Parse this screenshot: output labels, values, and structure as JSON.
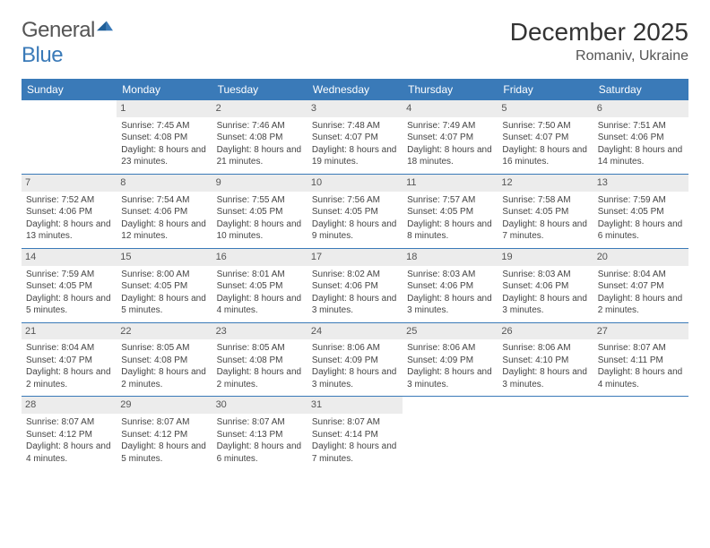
{
  "logo": {
    "textGray": "General",
    "textBlue": "Blue"
  },
  "title": "December 2025",
  "location": "Romaniv, Ukraine",
  "colors": {
    "headerBg": "#3a7ab8",
    "headerText": "#ffffff",
    "dayNumBg": "#ececec",
    "dayNumText": "#555555",
    "rule": "#3a7ab8",
    "bodyText": "#444444"
  },
  "dayNames": [
    "Sunday",
    "Monday",
    "Tuesday",
    "Wednesday",
    "Thursday",
    "Friday",
    "Saturday"
  ],
  "weeks": [
    [
      {
        "n": "",
        "sunrise": "",
        "sunset": "",
        "daylight": ""
      },
      {
        "n": "1",
        "sunrise": "Sunrise: 7:45 AM",
        "sunset": "Sunset: 4:08 PM",
        "daylight": "Daylight: 8 hours and 23 minutes."
      },
      {
        "n": "2",
        "sunrise": "Sunrise: 7:46 AM",
        "sunset": "Sunset: 4:08 PM",
        "daylight": "Daylight: 8 hours and 21 minutes."
      },
      {
        "n": "3",
        "sunrise": "Sunrise: 7:48 AM",
        "sunset": "Sunset: 4:07 PM",
        "daylight": "Daylight: 8 hours and 19 minutes."
      },
      {
        "n": "4",
        "sunrise": "Sunrise: 7:49 AM",
        "sunset": "Sunset: 4:07 PM",
        "daylight": "Daylight: 8 hours and 18 minutes."
      },
      {
        "n": "5",
        "sunrise": "Sunrise: 7:50 AM",
        "sunset": "Sunset: 4:07 PM",
        "daylight": "Daylight: 8 hours and 16 minutes."
      },
      {
        "n": "6",
        "sunrise": "Sunrise: 7:51 AM",
        "sunset": "Sunset: 4:06 PM",
        "daylight": "Daylight: 8 hours and 14 minutes."
      }
    ],
    [
      {
        "n": "7",
        "sunrise": "Sunrise: 7:52 AM",
        "sunset": "Sunset: 4:06 PM",
        "daylight": "Daylight: 8 hours and 13 minutes."
      },
      {
        "n": "8",
        "sunrise": "Sunrise: 7:54 AM",
        "sunset": "Sunset: 4:06 PM",
        "daylight": "Daylight: 8 hours and 12 minutes."
      },
      {
        "n": "9",
        "sunrise": "Sunrise: 7:55 AM",
        "sunset": "Sunset: 4:05 PM",
        "daylight": "Daylight: 8 hours and 10 minutes."
      },
      {
        "n": "10",
        "sunrise": "Sunrise: 7:56 AM",
        "sunset": "Sunset: 4:05 PM",
        "daylight": "Daylight: 8 hours and 9 minutes."
      },
      {
        "n": "11",
        "sunrise": "Sunrise: 7:57 AM",
        "sunset": "Sunset: 4:05 PM",
        "daylight": "Daylight: 8 hours and 8 minutes."
      },
      {
        "n": "12",
        "sunrise": "Sunrise: 7:58 AM",
        "sunset": "Sunset: 4:05 PM",
        "daylight": "Daylight: 8 hours and 7 minutes."
      },
      {
        "n": "13",
        "sunrise": "Sunrise: 7:59 AM",
        "sunset": "Sunset: 4:05 PM",
        "daylight": "Daylight: 8 hours and 6 minutes."
      }
    ],
    [
      {
        "n": "14",
        "sunrise": "Sunrise: 7:59 AM",
        "sunset": "Sunset: 4:05 PM",
        "daylight": "Daylight: 8 hours and 5 minutes."
      },
      {
        "n": "15",
        "sunrise": "Sunrise: 8:00 AM",
        "sunset": "Sunset: 4:05 PM",
        "daylight": "Daylight: 8 hours and 5 minutes."
      },
      {
        "n": "16",
        "sunrise": "Sunrise: 8:01 AM",
        "sunset": "Sunset: 4:05 PM",
        "daylight": "Daylight: 8 hours and 4 minutes."
      },
      {
        "n": "17",
        "sunrise": "Sunrise: 8:02 AM",
        "sunset": "Sunset: 4:06 PM",
        "daylight": "Daylight: 8 hours and 3 minutes."
      },
      {
        "n": "18",
        "sunrise": "Sunrise: 8:03 AM",
        "sunset": "Sunset: 4:06 PM",
        "daylight": "Daylight: 8 hours and 3 minutes."
      },
      {
        "n": "19",
        "sunrise": "Sunrise: 8:03 AM",
        "sunset": "Sunset: 4:06 PM",
        "daylight": "Daylight: 8 hours and 3 minutes."
      },
      {
        "n": "20",
        "sunrise": "Sunrise: 8:04 AM",
        "sunset": "Sunset: 4:07 PM",
        "daylight": "Daylight: 8 hours and 2 minutes."
      }
    ],
    [
      {
        "n": "21",
        "sunrise": "Sunrise: 8:04 AM",
        "sunset": "Sunset: 4:07 PM",
        "daylight": "Daylight: 8 hours and 2 minutes."
      },
      {
        "n": "22",
        "sunrise": "Sunrise: 8:05 AM",
        "sunset": "Sunset: 4:08 PM",
        "daylight": "Daylight: 8 hours and 2 minutes."
      },
      {
        "n": "23",
        "sunrise": "Sunrise: 8:05 AM",
        "sunset": "Sunset: 4:08 PM",
        "daylight": "Daylight: 8 hours and 2 minutes."
      },
      {
        "n": "24",
        "sunrise": "Sunrise: 8:06 AM",
        "sunset": "Sunset: 4:09 PM",
        "daylight": "Daylight: 8 hours and 3 minutes."
      },
      {
        "n": "25",
        "sunrise": "Sunrise: 8:06 AM",
        "sunset": "Sunset: 4:09 PM",
        "daylight": "Daylight: 8 hours and 3 minutes."
      },
      {
        "n": "26",
        "sunrise": "Sunrise: 8:06 AM",
        "sunset": "Sunset: 4:10 PM",
        "daylight": "Daylight: 8 hours and 3 minutes."
      },
      {
        "n": "27",
        "sunrise": "Sunrise: 8:07 AM",
        "sunset": "Sunset: 4:11 PM",
        "daylight": "Daylight: 8 hours and 4 minutes."
      }
    ],
    [
      {
        "n": "28",
        "sunrise": "Sunrise: 8:07 AM",
        "sunset": "Sunset: 4:12 PM",
        "daylight": "Daylight: 8 hours and 4 minutes."
      },
      {
        "n": "29",
        "sunrise": "Sunrise: 8:07 AM",
        "sunset": "Sunset: 4:12 PM",
        "daylight": "Daylight: 8 hours and 5 minutes."
      },
      {
        "n": "30",
        "sunrise": "Sunrise: 8:07 AM",
        "sunset": "Sunset: 4:13 PM",
        "daylight": "Daylight: 8 hours and 6 minutes."
      },
      {
        "n": "31",
        "sunrise": "Sunrise: 8:07 AM",
        "sunset": "Sunset: 4:14 PM",
        "daylight": "Daylight: 8 hours and 7 minutes."
      },
      {
        "n": "",
        "sunrise": "",
        "sunset": "",
        "daylight": ""
      },
      {
        "n": "",
        "sunrise": "",
        "sunset": "",
        "daylight": ""
      },
      {
        "n": "",
        "sunrise": "",
        "sunset": "",
        "daylight": ""
      }
    ]
  ]
}
